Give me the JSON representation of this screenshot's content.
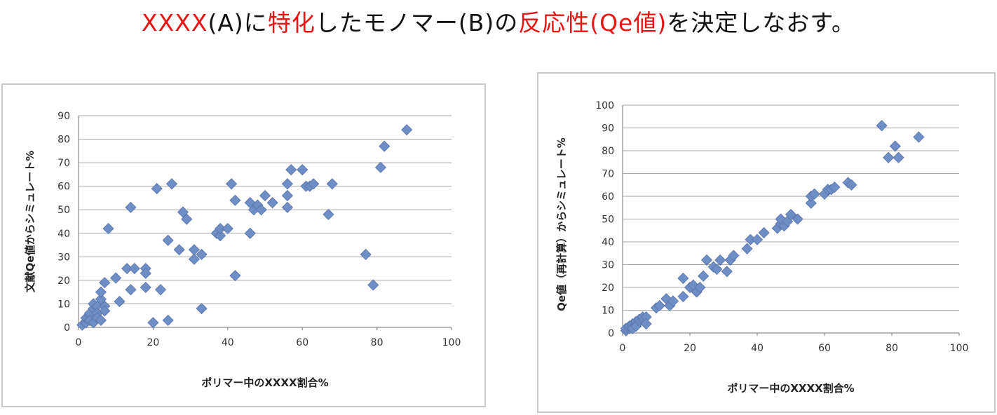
{
  "heading": {
    "part1": "XXXX",
    "part2": "(A)に",
    "part3": "特化",
    "part4": "したモノマー(B)の",
    "part5": "反応性(Qe値)",
    "part6": "を決定しなおす。"
  },
  "colors": {
    "heading_accent": "#e81414",
    "marker_fill": "#6f8ec6",
    "marker_stroke": "#5873a8",
    "grid": "#a6a6a6"
  },
  "chart_data": [
    {
      "type": "scatter",
      "title": "",
      "xlabel": "ポリマー中のXXXX割合%",
      "ylabel": "文献Qe値からシミュレート%",
      "xlim": [
        0,
        100
      ],
      "ylim": [
        0,
        90
      ],
      "xticks": [
        "0",
        "20",
        "40",
        "60",
        "80",
        "100"
      ],
      "yticks": [
        "0",
        "10",
        "20",
        "30",
        "40",
        "50",
        "60",
        "70",
        "80",
        "90"
      ],
      "grid": true,
      "marker": "diamond",
      "points": [
        [
          1,
          1
        ],
        [
          2,
          2
        ],
        [
          2,
          4
        ],
        [
          3,
          5
        ],
        [
          3,
          6
        ],
        [
          3,
          3
        ],
        [
          4,
          8
        ],
        [
          4,
          10
        ],
        [
          4,
          2
        ],
        [
          5,
          9
        ],
        [
          5,
          6
        ],
        [
          5,
          4
        ],
        [
          6,
          12
        ],
        [
          6,
          15
        ],
        [
          6,
          3
        ],
        [
          7,
          19
        ],
        [
          7,
          9
        ],
        [
          7,
          7
        ],
        [
          8,
          42
        ],
        [
          10,
          21
        ],
        [
          11,
          11
        ],
        [
          13,
          25
        ],
        [
          14,
          51
        ],
        [
          14,
          16
        ],
        [
          15,
          25
        ],
        [
          18,
          25
        ],
        [
          18,
          17
        ],
        [
          18,
          23
        ],
        [
          20,
          2
        ],
        [
          21,
          59
        ],
        [
          22,
          16
        ],
        [
          24,
          37
        ],
        [
          24,
          3
        ],
        [
          25,
          61
        ],
        [
          27,
          33
        ],
        [
          28,
          49
        ],
        [
          29,
          46
        ],
        [
          31,
          33
        ],
        [
          31,
          29
        ],
        [
          33,
          31
        ],
        [
          33,
          8
        ],
        [
          37,
          40
        ],
        [
          38,
          39
        ],
        [
          38,
          42
        ],
        [
          40,
          42
        ],
        [
          41,
          61
        ],
        [
          42,
          54
        ],
        [
          42,
          22
        ],
        [
          46,
          40
        ],
        [
          46,
          53
        ],
        [
          47,
          50
        ],
        [
          48,
          52
        ],
        [
          49,
          50
        ],
        [
          50,
          56
        ],
        [
          52,
          53
        ],
        [
          56,
          51
        ],
        [
          56,
          56
        ],
        [
          56,
          61
        ],
        [
          57,
          67
        ],
        [
          60,
          67
        ],
        [
          61,
          60
        ],
        [
          62,
          60
        ],
        [
          63,
          61
        ],
        [
          67,
          48
        ],
        [
          68,
          61
        ],
        [
          77,
          31
        ],
        [
          79,
          18
        ],
        [
          81,
          68
        ],
        [
          82,
          77
        ],
        [
          88,
          84
        ]
      ]
    },
    {
      "type": "scatter",
      "title": "",
      "xlabel": "ポリマー中のXXXX割合%",
      "ylabel": "Qe値（再計算）からシミュレート%",
      "xlim": [
        0,
        100
      ],
      "ylim": [
        0,
        100
      ],
      "xticks": [
        "0",
        "20",
        "40",
        "60",
        "80",
        "100"
      ],
      "yticks": [
        "0",
        "10",
        "20",
        "30",
        "40",
        "50",
        "60",
        "70",
        "80",
        "90",
        "100"
      ],
      "grid": true,
      "marker": "diamond",
      "points": [
        [
          1,
          1
        ],
        [
          1,
          2
        ],
        [
          2,
          2
        ],
        [
          2,
          3
        ],
        [
          3,
          3
        ],
        [
          3,
          4
        ],
        [
          3,
          2
        ],
        [
          4,
          4
        ],
        [
          4,
          5
        ],
        [
          4,
          3
        ],
        [
          5,
          5
        ],
        [
          5,
          6
        ],
        [
          6,
          6
        ],
        [
          6,
          7
        ],
        [
          7,
          7
        ],
        [
          7,
          4
        ],
        [
          10,
          11
        ],
        [
          11,
          12
        ],
        [
          13,
          15
        ],
        [
          14,
          12
        ],
        [
          15,
          14
        ],
        [
          18,
          16
        ],
        [
          18,
          24
        ],
        [
          20,
          20
        ],
        [
          21,
          21
        ],
        [
          22,
          18
        ],
        [
          23,
          20
        ],
        [
          24,
          25
        ],
        [
          25,
          32
        ],
        [
          27,
          29
        ],
        [
          28,
          28
        ],
        [
          29,
          32
        ],
        [
          31,
          27
        ],
        [
          32,
          32
        ],
        [
          33,
          34
        ],
        [
          37,
          37
        ],
        [
          38,
          41
        ],
        [
          40,
          41
        ],
        [
          42,
          44
        ],
        [
          46,
          46
        ],
        [
          47,
          48
        ],
        [
          47,
          50
        ],
        [
          48,
          47
        ],
        [
          49,
          49
        ],
        [
          50,
          52
        ],
        [
          52,
          50
        ],
        [
          56,
          57
        ],
        [
          56,
          60
        ],
        [
          57,
          61
        ],
        [
          60,
          61
        ],
        [
          61,
          63
        ],
        [
          62,
          63
        ],
        [
          63,
          64
        ],
        [
          67,
          66
        ],
        [
          68,
          65
        ],
        [
          77,
          91
        ],
        [
          79,
          77
        ],
        [
          81,
          82
        ],
        [
          82,
          77
        ],
        [
          88,
          86
        ]
      ]
    }
  ]
}
